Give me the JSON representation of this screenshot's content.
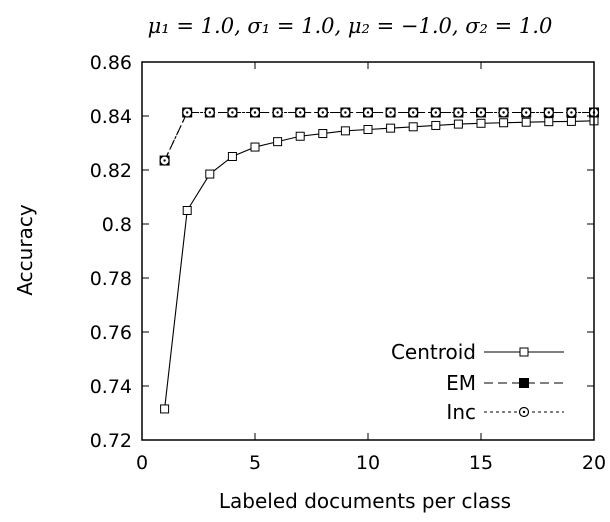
{
  "chart_data": {
    "type": "line",
    "title": "μ₁ = 1.0, σ₁ = 1.0,     μ₂ = −1.0, σ₂ = 1.0",
    "xlabel": "Labeled documents per class",
    "ylabel": "Accuracy",
    "xlim": [
      0,
      20
    ],
    "ylim": [
      0.72,
      0.86
    ],
    "xticks": [
      0,
      5,
      10,
      15,
      20
    ],
    "yticks": [
      0.72,
      0.74,
      0.76,
      0.78,
      0.8,
      0.82,
      0.84,
      0.86
    ],
    "ytick_labels": [
      "0.72",
      "0.74",
      "0.76",
      "0.78",
      "0.8",
      "0.82",
      "0.84",
      "0.86"
    ],
    "grid": false,
    "legend_position": "bottom-right",
    "x": [
      1,
      2,
      3,
      4,
      5,
      6,
      7,
      8,
      9,
      10,
      11,
      12,
      13,
      14,
      15,
      16,
      17,
      18,
      19,
      20
    ],
    "series": [
      {
        "name": "Centroid",
        "line_style": "solid",
        "marker": "open-square",
        "values": [
          0.7315,
          0.805,
          0.8185,
          0.825,
          0.8285,
          0.8305,
          0.8325,
          0.8335,
          0.8345,
          0.835,
          0.8355,
          0.836,
          0.8365,
          0.837,
          0.8373,
          0.8375,
          0.8377,
          0.8379,
          0.838,
          0.8382
        ]
      },
      {
        "name": "EM",
        "line_style": "dashed",
        "marker": "filled-square",
        "values": [
          0.8235,
          0.8413,
          0.8413,
          0.8413,
          0.8413,
          0.8413,
          0.8413,
          0.8413,
          0.8413,
          0.8413,
          0.8413,
          0.8413,
          0.8413,
          0.8413,
          0.8413,
          0.8413,
          0.8413,
          0.8413,
          0.8413,
          0.8413
        ]
      },
      {
        "name": "Inc",
        "line_style": "dotted",
        "marker": "open-circle",
        "values": [
          0.8235,
          0.8413,
          0.8413,
          0.8413,
          0.8413,
          0.8413,
          0.8413,
          0.8413,
          0.8413,
          0.8413,
          0.8413,
          0.8413,
          0.8413,
          0.8413,
          0.8413,
          0.8413,
          0.8413,
          0.8413,
          0.8413,
          0.8413
        ]
      }
    ]
  }
}
